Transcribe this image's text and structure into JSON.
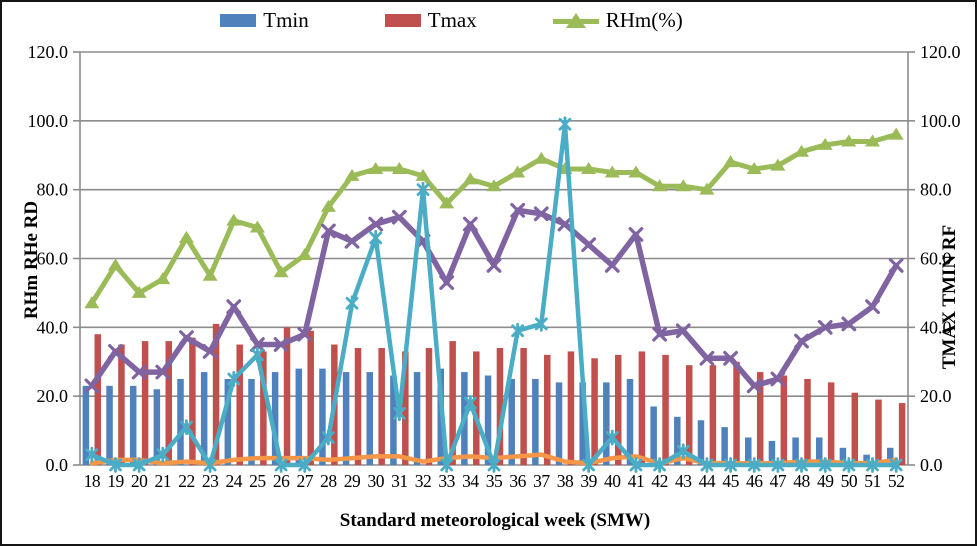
{
  "legend": [
    {
      "label": "Tmin",
      "type": "bar",
      "color": "#4F81BD"
    },
    {
      "label": "Tmax",
      "type": "bar",
      "color": "#C0504D"
    },
    {
      "label": "RHm(%)",
      "type": "line-triangle",
      "color": "#9BBB59"
    }
  ],
  "axes": {
    "left_title": "RHm RHe RD",
    "right_title": "TMAX TMIN RF",
    "x_title": "Standard meteorological week (SMW)",
    "tick_values": [
      0,
      20,
      40,
      60,
      80,
      100,
      120
    ],
    "tick_labels": [
      "0.0",
      "20.0",
      "40.0",
      "60.0",
      "80.0",
      "100.0",
      "120.0"
    ]
  },
  "chart_data": {
    "type": "bar",
    "subtype": "combo-bar-line-dual-axis",
    "title": "",
    "xlabel": "Standard meteorological week (SMW)",
    "ylabel_left": "RHm RHe RD",
    "ylabel_right": "TMAX TMIN RF",
    "ylim": [
      0,
      120
    ],
    "grid": true,
    "legend_position": "top",
    "categories": [
      "18",
      "19",
      "20",
      "21",
      "22",
      "23",
      "24",
      "25",
      "26",
      "27",
      "28",
      "29",
      "30",
      "31",
      "32",
      "33",
      "34",
      "35",
      "36",
      "37",
      "38",
      "39",
      "40",
      "41",
      "42",
      "43",
      "44",
      "45",
      "46",
      "47",
      "48",
      "49",
      "50",
      "51",
      "52"
    ],
    "series": [
      {
        "name": "Tmin",
        "type": "bar",
        "marker": "none",
        "color": "#4F81BD",
        "axis": "right",
        "values": [
          23,
          23,
          23,
          22,
          25,
          27,
          25,
          25,
          27,
          28,
          28,
          27,
          27,
          26,
          27,
          28,
          27,
          26,
          25,
          25,
          24,
          24,
          24,
          25,
          17,
          14,
          13,
          11,
          8,
          7,
          8,
          8,
          5,
          3,
          5
        ]
      },
      {
        "name": "Tmax",
        "type": "bar",
        "marker": "none",
        "color": "#C0504D",
        "axis": "right",
        "values": [
          38,
          35,
          36,
          36,
          37,
          41,
          35,
          33,
          40,
          39,
          35,
          34,
          34,
          33,
          34,
          36,
          33,
          34,
          34,
          32,
          33,
          31,
          32,
          33,
          32,
          29,
          29,
          30,
          27,
          26,
          25,
          24,
          21,
          19,
          18
        ]
      },
      {
        "name": "RHm(%)",
        "type": "line",
        "marker": "triangle",
        "color": "#9BBB59",
        "axis": "left",
        "values": [
          47,
          58,
          50,
          54,
          66,
          55,
          71,
          69,
          56,
          61,
          75,
          84,
          86,
          86,
          84,
          76,
          83,
          81,
          85,
          89,
          86,
          86,
          85,
          85,
          81,
          81,
          80,
          88,
          86,
          87,
          91,
          93,
          94,
          94,
          96
        ]
      },
      {
        "name": "RHe",
        "type": "line",
        "marker": "x",
        "color": "#8064A2",
        "axis": "left",
        "values": [
          23,
          33,
          27,
          27,
          37,
          33,
          46,
          35,
          35,
          38,
          68,
          65,
          70,
          72,
          65,
          53,
          70,
          58,
          74,
          73,
          70,
          64,
          58,
          67,
          38,
          39,
          31,
          31,
          23,
          25,
          36,
          40,
          41,
          46,
          58
        ]
      },
      {
        "name": "RD",
        "type": "line",
        "marker": "none",
        "color": "#F79646",
        "axis": "left",
        "values": [
          0.5,
          1.5,
          1.5,
          0.5,
          1,
          0.5,
          1.5,
          2,
          2,
          2,
          1.5,
          2,
          2.5,
          2.5,
          1,
          2,
          2.5,
          2,
          2.5,
          3,
          1,
          0.5,
          2,
          2.5,
          0.5,
          2,
          0.5,
          0.5,
          0.5,
          0.5,
          1,
          1,
          0.5,
          0.5,
          1.5
        ]
      },
      {
        "name": "RF",
        "type": "line",
        "marker": "asterisk",
        "color": "#4BACC6",
        "axis": "right",
        "values": [
          3,
          0,
          0,
          3,
          11,
          0,
          25,
          32,
          0,
          0,
          8,
          47,
          66,
          15,
          80,
          0,
          18,
          0,
          39,
          41,
          99,
          0,
          8,
          0,
          0,
          4,
          0,
          0,
          0,
          0,
          0,
          0,
          0,
          0,
          0
        ]
      }
    ]
  }
}
